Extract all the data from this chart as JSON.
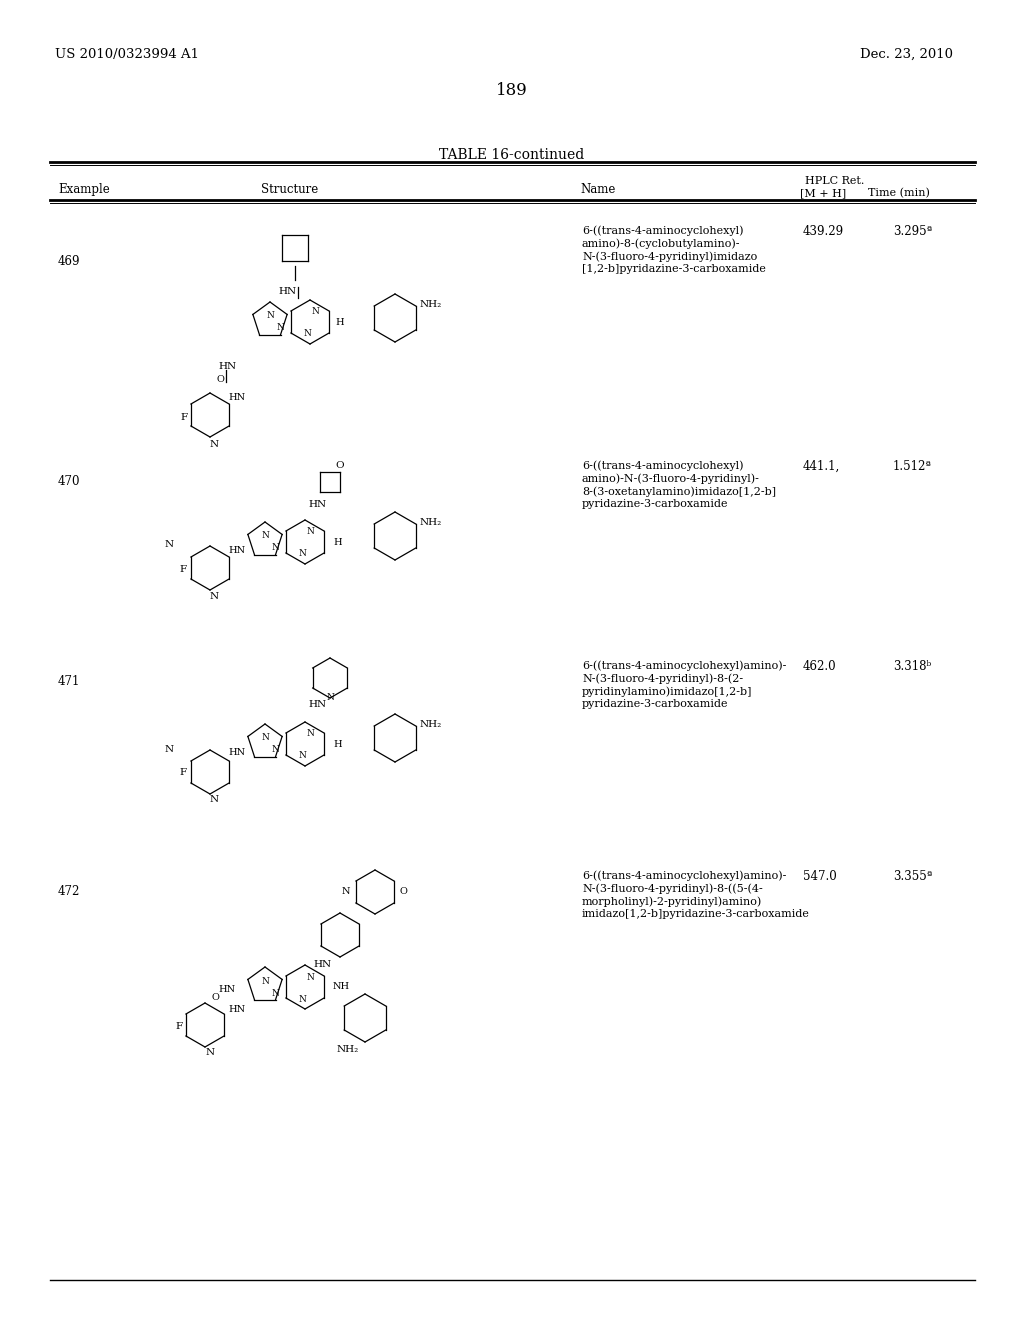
{
  "page_left_header": "US 2010/0323994 A1",
  "page_right_header": "Dec. 23, 2010",
  "page_number": "189",
  "table_title": "TABLE 16-continued",
  "col_headers": [
    "Example",
    "Structure",
    "Name",
    "[M + H]",
    "HPLC Ret.\nTime (min)"
  ],
  "rows": [
    {
      "example": "469",
      "name": "6-((trans-4-aminocyclohexyl)\namino)-8-(cyclobutylamino)-\nN-(3-fluoro-4-pyridinyl)imidazo\n[1,2-b]pyridazine-3-carboxamide",
      "mh": "439.29",
      "hplc": "3.295ª"
    },
    {
      "example": "470",
      "name": "6-((trans-4-aminocyclohexyl)\namino)-N-(3-fluoro-4-pyridinyl)-\n8-(3-oxetanylamino)imidazo[1,2-b]\npyridazine-3-carboxamide",
      "mh": "441.1,",
      "hplc": "1.512ª"
    },
    {
      "example": "471",
      "name": "6-((trans-4-aminocyclohexyl)amino)-\nN-(3-fluoro-4-pyridinyl)-8-(2-\npyridinylamino)imidazo[1,2-b]\npyridazine-3-carboxamide",
      "mh": "462.0",
      "hplc": "3.318ᵇ"
    },
    {
      "example": "472",
      "name": "6-((trans-4-aminocyclohexyl)amino)-\nN-(3-fluoro-4-pyridinyl)-8-((5-(4-\nmorpholinyl)-2-pyridinyl)amino)\nimidazo[1,2-b]pyridazine-3-carboxamide",
      "mh": "547.0",
      "hplc": "3.355ª"
    }
  ],
  "bg_color": "#ffffff",
  "text_color": "#000000",
  "line_color": "#000000"
}
